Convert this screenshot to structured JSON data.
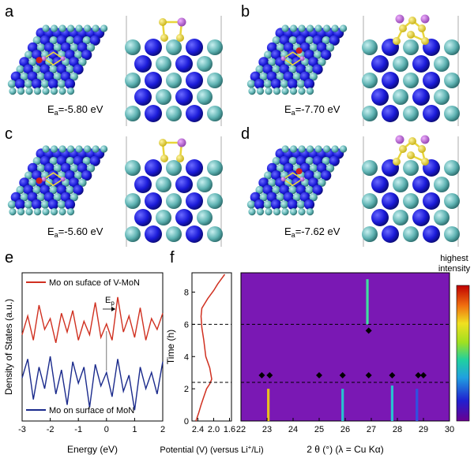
{
  "panels": {
    "a": {
      "label": "a",
      "energy_text": "-5.80 eV"
    },
    "b": {
      "label": "b",
      "energy_text": "-7.70 eV"
    },
    "c": {
      "label": "c",
      "energy_text": "-5.60 eV"
    },
    "d": {
      "label": "d",
      "energy_text": "-7.62 eV"
    },
    "e": {
      "label": "e"
    },
    "f": {
      "label": "f"
    }
  },
  "energy_prefix": "E",
  "energy_sub": "a",
  "colors": {
    "atom_blue": "#1a1ad8",
    "atom_cyan": "#5fb3b3",
    "sulfur": "#e8d63a",
    "lithium": "#c070d0",
    "oxygen": "#d02020",
    "dos_red": "#d03020",
    "dos_blue": "#1a2a8c",
    "heat_bg": "#7a18b4"
  },
  "chart_data": [
    {
      "type": "line",
      "panel": "e",
      "xlabel": "Energy (eV)",
      "ylabel": "Density of States (a.u.)",
      "xlim": [
        -3,
        2
      ],
      "x_ticks": [
        "-3",
        "-2",
        "-1",
        "0",
        "1",
        "2"
      ],
      "annotation": {
        "text": "E",
        "sub": "p",
        "x": 0
      },
      "series": [
        {
          "name": "Mo on suface of V-MoN",
          "color": "#d03020",
          "x": [
            -3,
            -2.8,
            -2.6,
            -2.4,
            -2.2,
            -2.0,
            -1.8,
            -1.6,
            -1.4,
            -1.2,
            -1.0,
            -0.8,
            -0.6,
            -0.4,
            -0.2,
            0.0,
            0.2,
            0.4,
            0.6,
            0.8,
            1.0,
            1.2,
            1.4,
            1.6,
            1.8,
            2.0
          ],
          "y": [
            3.2,
            3.9,
            3.0,
            4.3,
            3.4,
            3.8,
            2.9,
            4.0,
            3.3,
            4.1,
            3.0,
            3.7,
            3.2,
            4.4,
            3.1,
            3.6,
            3.0,
            4.6,
            3.3,
            3.9,
            3.1,
            4.2,
            3.0,
            3.8,
            3.4,
            4.0
          ]
        },
        {
          "name": "Mo on surface of MoN",
          "color": "#1a2a8c",
          "x": [
            -3,
            -2.8,
            -2.6,
            -2.4,
            -2.2,
            -2.0,
            -1.8,
            -1.6,
            -1.4,
            -1.2,
            -1.0,
            -0.8,
            -0.6,
            -0.4,
            -0.2,
            0.0,
            0.2,
            0.4,
            0.6,
            0.8,
            1.0,
            1.2,
            1.4,
            1.6,
            1.8,
            2.0
          ],
          "y": [
            1.6,
            2.3,
            0.8,
            2.0,
            1.2,
            2.4,
            1.0,
            1.9,
            0.6,
            2.2,
            1.4,
            2.0,
            0.5,
            2.1,
            1.3,
            1.8,
            0.9,
            2.3,
            1.1,
            1.7,
            0.4,
            2.0,
            1.2,
            1.8,
            1.0,
            2.2
          ]
        }
      ]
    },
    {
      "type": "line",
      "panel": "f-left",
      "xlabel": "Potential (V) (versus Li",
      "xlabel_sup": "+",
      "xlabel_tail": "/Li)",
      "ylabel": "Time (h)",
      "x_ticks": [
        "2.4",
        "2.0",
        "1.6"
      ],
      "y_ticks": [
        "0",
        "2",
        "4",
        "6",
        "8"
      ],
      "xlim": [
        2.55,
        1.55
      ],
      "ylim": [
        0,
        9.2
      ],
      "series": [
        {
          "name": "",
          "color": "#d03020",
          "x": [
            2.45,
            2.38,
            2.32,
            2.25,
            2.18,
            2.1,
            2.05,
            2.1,
            2.2,
            2.25,
            2.3,
            2.32,
            2.3,
            2.15,
            2.0,
            1.9,
            1.78,
            1.72
          ],
          "y": [
            0,
            0.5,
            1.0,
            1.5,
            2.0,
            2.3,
            2.6,
            3.3,
            4.0,
            5.0,
            5.8,
            6.5,
            7.0,
            7.6,
            8.1,
            8.5,
            8.9,
            9.1
          ]
        }
      ]
    },
    {
      "type": "heatmap",
      "panel": "f-right",
      "xlabel": "2 θ (°) (λ = Cu Kα)",
      "xlim": [
        22,
        30
      ],
      "ylim": [
        0,
        9.2
      ],
      "x_ticks": [
        "22",
        "23",
        "24",
        "25",
        "26",
        "27",
        "28",
        "29",
        "30"
      ],
      "colorbar_label_top": "highest",
      "colorbar_label_bottom": "intensity",
      "dashed_lines_h": [
        2.4,
        6.0
      ],
      "diamonds_low": [
        22.8,
        23.1,
        25.0,
        25.9,
        26.9,
        27.8,
        28.8,
        29.0
      ],
      "diamond_mid": 26.9,
      "streaks": [
        {
          "x": 23.05,
          "t0": 0,
          "t1": 2.0,
          "color": "#e8c020"
        },
        {
          "x": 25.9,
          "t0": 0,
          "t1": 2.0,
          "color": "#28c0d0"
        },
        {
          "x": 27.8,
          "t0": 0,
          "t1": 2.2,
          "color": "#28c0d0"
        },
        {
          "x": 28.75,
          "t0": 0,
          "t1": 2.0,
          "color": "#3050e0"
        },
        {
          "x": 26.85,
          "t0": 6.0,
          "t1": 8.8,
          "color": "#40e0a0"
        }
      ]
    }
  ]
}
